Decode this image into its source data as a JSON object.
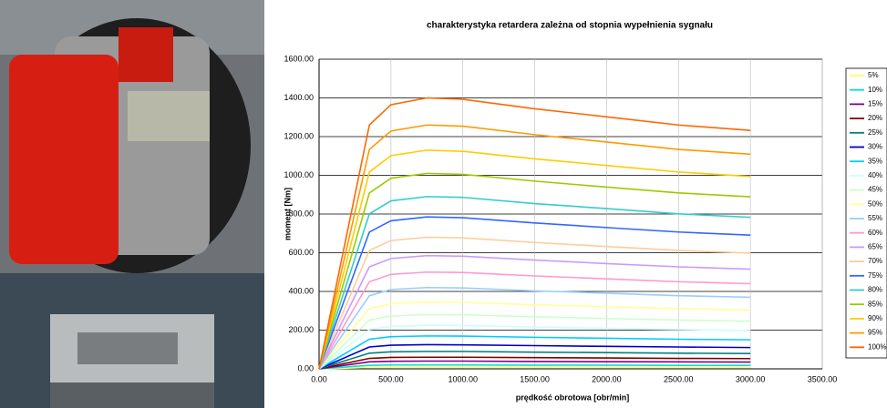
{
  "chart_data": {
    "type": "line",
    "title": "charakterystyka retardera zależna od stopnia wypełnienia sygnału",
    "x_label": "prędkość obrotowa [obr/min]",
    "y_label": "moment [Nm]",
    "x": [
      0,
      350,
      500,
      750,
      1000,
      1500,
      2000,
      2500,
      3000
    ],
    "xlim": [
      0,
      3500
    ],
    "xticks": [
      {
        "value": 0,
        "label": "0.00"
      },
      {
        "value": 500,
        "label": "500.00"
      },
      {
        "value": 1000,
        "label": "1000.00"
      },
      {
        "value": 1500,
        "label": "1500.00"
      },
      {
        "value": 2000,
        "label": "2000.00"
      },
      {
        "value": 2500,
        "label": "2500.00"
      },
      {
        "value": 3000,
        "label": "3000.00"
      },
      {
        "value": 3500,
        "label": "3500.00"
      }
    ],
    "ylim": [
      0,
      1600
    ],
    "yticks": [
      {
        "value": 0,
        "label": "0.00"
      },
      {
        "value": 200,
        "label": "200.00"
      },
      {
        "value": 400,
        "label": "400.00"
      },
      {
        "value": 600,
        "label": "600.00"
      },
      {
        "value": 800,
        "label": "800.00"
      },
      {
        "value": 1000,
        "label": "1000.00"
      },
      {
        "value": 1200,
        "label": "1200.00"
      },
      {
        "value": 1400,
        "label": "1400.00"
      },
      {
        "value": 1600,
        "label": "1600.00"
      }
    ],
    "grid": true,
    "legend": "right",
    "series": [
      {
        "name": "5%",
        "color": "#ffff66",
        "values": [
          0,
          7,
          8,
          8,
          8,
          8,
          7,
          7,
          7
        ]
      },
      {
        "name": "10%",
        "color": "#00e0e0",
        "values": [
          0,
          18,
          20,
          20,
          20,
          19,
          19,
          18,
          18
        ]
      },
      {
        "name": "15%",
        "color": "#800080",
        "values": [
          0,
          36,
          39,
          40,
          40,
          38,
          37,
          36,
          35
        ]
      },
      {
        "name": "20%",
        "color": "#800000",
        "values": [
          0,
          54,
          59,
          60,
          60,
          58,
          56,
          54,
          53
        ]
      },
      {
        "name": "25%",
        "color": "#008080",
        "values": [
          0,
          81,
          88,
          90,
          90,
          86,
          84,
          81,
          79
        ]
      },
      {
        "name": "30%",
        "color": "#0000cc",
        "values": [
          0,
          113,
          122,
          125,
          124,
          120,
          116,
          113,
          110
        ]
      },
      {
        "name": "35%",
        "color": "#00ccff",
        "values": [
          0,
          153,
          166,
          170,
          169,
          163,
          158,
          153,
          150
        ]
      },
      {
        "name": "40%",
        "color": "#ccffff",
        "values": [
          0,
          203,
          219,
          225,
          224,
          216,
          209,
          203,
          198
        ]
      },
      {
        "name": "45%",
        "color": "#ccffcc",
        "values": [
          0,
          252,
          273,
          280,
          279,
          269,
          260,
          252,
          246
        ]
      },
      {
        "name": "50%",
        "color": "#ffff99",
        "values": [
          0,
          311,
          336,
          345,
          343,
          331,
          321,
          311,
          304
        ]
      },
      {
        "name": "55%",
        "color": "#99ccff",
        "values": [
          0,
          378,
          410,
          420,
          418,
          403,
          391,
          378,
          370
        ]
      },
      {
        "name": "60%",
        "color": "#ff99cc",
        "values": [
          0,
          450,
          488,
          500,
          498,
          480,
          465,
          450,
          440
        ]
      },
      {
        "name": "65%",
        "color": "#cc99ff",
        "values": [
          0,
          527,
          570,
          585,
          582,
          562,
          544,
          527,
          515
        ]
      },
      {
        "name": "70%",
        "color": "#ffcc99",
        "values": [
          0,
          612,
          663,
          680,
          677,
          653,
          632,
          612,
          598
        ]
      },
      {
        "name": "75%",
        "color": "#3366ff",
        "values": [
          0,
          707,
          765,
          785,
          781,
          754,
          730,
          707,
          691
        ]
      },
      {
        "name": "80%",
        "color": "#33cccc",
        "values": [
          0,
          801,
          868,
          890,
          886,
          854,
          828,
          801,
          783
        ]
      },
      {
        "name": "85%",
        "color": "#99cc00",
        "values": [
          0,
          909,
          985,
          1010,
          1005,
          970,
          939,
          909,
          889
        ]
      },
      {
        "name": "90%",
        "color": "#ffcc00",
        "values": [
          0,
          1017,
          1102,
          1130,
          1124,
          1085,
          1051,
          1017,
          994
        ]
      },
      {
        "name": "95%",
        "color": "#ff9900",
        "values": [
          0,
          1134,
          1229,
          1260,
          1254,
          1210,
          1172,
          1134,
          1109
        ]
      },
      {
        "name": "100%",
        "color": "#ff6600",
        "values": [
          0,
          1260,
          1365,
          1400,
          1393,
          1344,
          1302,
          1260,
          1232
        ]
      }
    ]
  }
}
